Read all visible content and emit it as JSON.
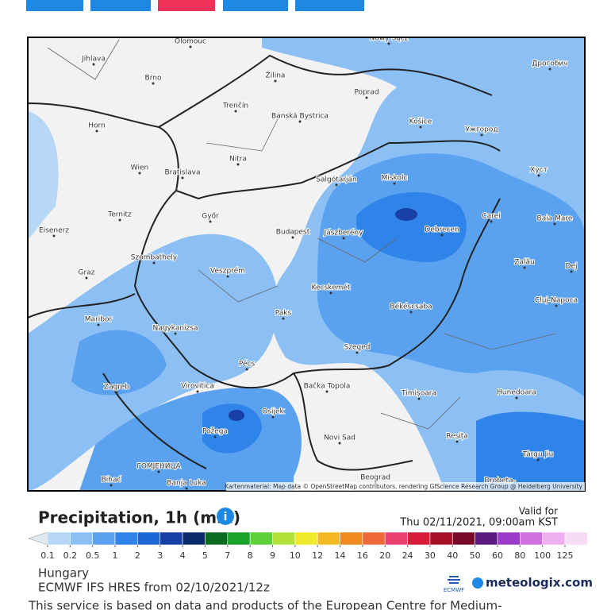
{
  "map": {
    "cities": [
      "Olomouc",
      "Nowy Sącz",
      "Дрогобич",
      "Jihlava",
      "Brno",
      "Žilina",
      "Poprad",
      "Trenčín",
      "Banská Bystrica",
      "Košice",
      "Ужгород",
      "Horn",
      "Nitra",
      "Wien",
      "Bratislava",
      "Salgótarján",
      "Miskolc",
      "Хуст",
      "Ternitz",
      "Győr",
      "Carei",
      "Baia Mare",
      "Eisenerz",
      "Budapest",
      "Jászberény",
      "Debrecen",
      "Szombathely",
      "Zalău",
      "Dej",
      "Graz",
      "Veszprém",
      "Kecskemét",
      "Cluj-Napoca",
      "Békéscsaba",
      "Maribor",
      "Nagykanizsa",
      "Paks",
      "Szeged",
      "Pécs",
      "Virovitica",
      "Bačka Topola",
      "Zagreb",
      "Timișoara",
      "Hunedoara",
      "Osijek",
      "Požega",
      "Novi Sad",
      "Reșița",
      "Târgu Jiu",
      "ГОМЈЕНИЦА",
      "Bihać",
      "Banja Luka",
      "Beograd",
      "Drobeta-"
    ],
    "attribution": "Kartenmaterial: Map data © OpenStreetMap contributors, rendering GIScience Research Group @ Heidelberg University"
  },
  "legend": {
    "title": "Precipitation, 1h (mm)",
    "valid_label": "Valid for",
    "valid_time": "Thu 02/11/2021, 09:00am KST",
    "ticks": [
      0.1,
      0.2,
      0.5,
      1,
      2,
      3,
      4,
      5,
      7,
      8,
      9,
      10,
      12,
      14,
      16,
      20,
      24,
      30,
      40,
      50,
      60,
      80,
      100,
      125
    ],
    "colors": [
      "#dfe9f3",
      "#b6d7f6",
      "#8cc0f5",
      "#5aa2f0",
      "#2f84ea",
      "#1d66d6",
      "#173fa6",
      "#0a2a6a",
      "#0b6b1e",
      "#19a32a",
      "#5fcf3a",
      "#b4e23c",
      "#f1ea2c",
      "#f4b923",
      "#f08a1e",
      "#ee6a3a",
      "#ec4070",
      "#d81c3a",
      "#a8102a",
      "#7a0a2a",
      "#5a1a80",
      "#9a3cc8",
      "#d070e0",
      "#f0b0f0",
      "#f6dcf6",
      "#bbbbbb"
    ]
  },
  "footer": {
    "region": "Hungary",
    "model": "ECMWF IFS HRES from 02/10/2021/12z",
    "ecmwf": "ECMWF",
    "brand": "meteologix.com",
    "notice": "This service is based on data and products of the European Centre for Medium-"
  }
}
